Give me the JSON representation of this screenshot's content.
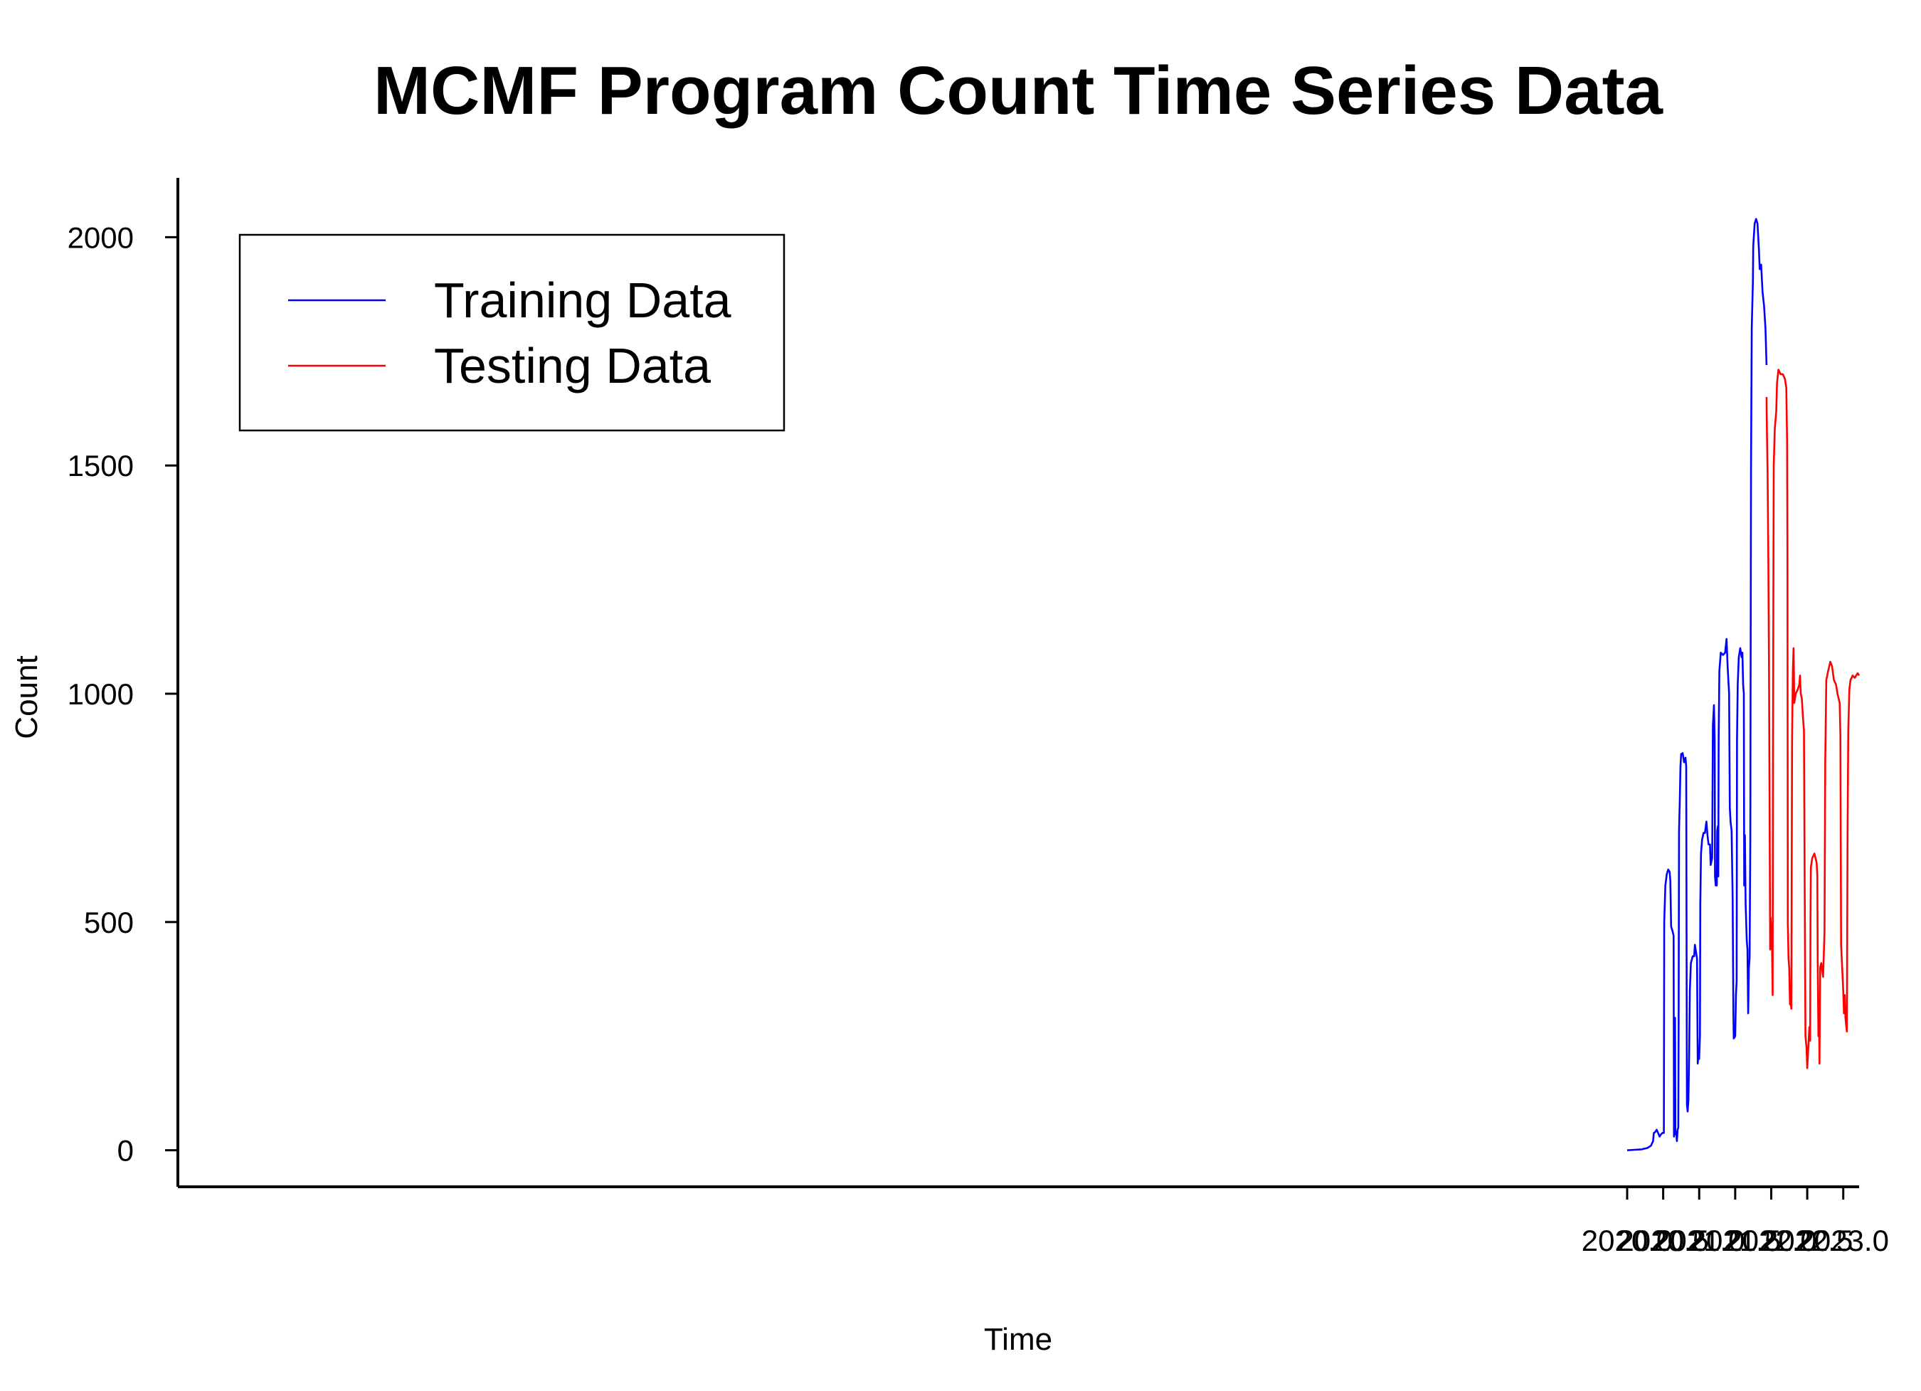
{
  "chart_data": {
    "type": "line",
    "title": "MCMF Program Count Time Series Data",
    "xlabel": "Time",
    "ylabel": "Count",
    "xlim": [
      1999.88,
      2023.22
    ],
    "ylim": [
      -80,
      2130
    ],
    "x_ticks": [
      {
        "value": 2020.0,
        "label": "2020.0"
      },
      {
        "value": 2020.5,
        "label": "2020.5"
      },
      {
        "value": 2021.0,
        "label": "2021.0"
      },
      {
        "value": 2021.5,
        "label": "2021.5"
      },
      {
        "value": 2022.0,
        "label": "2022.0"
      },
      {
        "value": 2022.5,
        "label": "2022.5"
      },
      {
        "value": 2023.0,
        "label": "2023.0"
      }
    ],
    "y_ticks": [
      {
        "value": 0,
        "label": "0"
      },
      {
        "value": 500,
        "label": "500"
      },
      {
        "value": 1000,
        "label": "1000"
      },
      {
        "value": 1500,
        "label": "1500"
      },
      {
        "value": 2000,
        "label": "2000"
      }
    ],
    "grid": false,
    "legend_position": "top-left",
    "series": [
      {
        "name": "Training Data",
        "color": "#0000ff",
        "points": [
          [
            2020.0,
            0
          ],
          [
            2020.1,
            1
          ],
          [
            2020.2,
            2
          ],
          [
            2020.28,
            5
          ],
          [
            2020.33,
            10
          ],
          [
            2020.36,
            20
          ],
          [
            2020.37,
            38
          ],
          [
            2020.39,
            40
          ],
          [
            2020.41,
            45
          ],
          [
            2020.43,
            38
          ],
          [
            2020.45,
            30
          ],
          [
            2020.47,
            35
          ],
          [
            2020.49,
            38
          ],
          [
            2020.51,
            38
          ],
          [
            2020.515,
            500
          ],
          [
            2020.53,
            580
          ],
          [
            2020.55,
            605
          ],
          [
            2020.57,
            615
          ],
          [
            2020.59,
            610
          ],
          [
            2020.6,
            590
          ],
          [
            2020.61,
            490
          ],
          [
            2020.63,
            480
          ],
          [
            2020.645,
            470
          ],
          [
            2020.65,
            30
          ],
          [
            2020.655,
            290
          ],
          [
            2020.665,
            290
          ],
          [
            2020.67,
            35
          ],
          [
            2020.68,
            40
          ],
          [
            2020.69,
            20
          ],
          [
            2020.7,
            45
          ],
          [
            2020.71,
            50
          ],
          [
            2020.715,
            300
          ],
          [
            2020.72,
            700
          ],
          [
            2020.73,
            760
          ],
          [
            2020.74,
            840
          ],
          [
            2020.75,
            868
          ],
          [
            2020.77,
            870
          ],
          [
            2020.79,
            850
          ],
          [
            2020.81,
            860
          ],
          [
            2020.82,
            840
          ],
          [
            2020.83,
            100
          ],
          [
            2020.84,
            85
          ],
          [
            2020.85,
            110
          ],
          [
            2020.86,
            210
          ],
          [
            2020.87,
            350
          ],
          [
            2020.885,
            410
          ],
          [
            2020.91,
            425
          ],
          [
            2020.93,
            425
          ],
          [
            2020.94,
            450
          ],
          [
            2020.96,
            430
          ],
          [
            2020.97,
            420
          ],
          [
            2020.975,
            300
          ],
          [
            2020.98,
            190
          ],
          [
            2020.99,
            215
          ],
          [
            2021.0,
            200
          ],
          [
            2021.01,
            250
          ],
          [
            2021.015,
            540
          ],
          [
            2021.025,
            650
          ],
          [
            2021.04,
            680
          ],
          [
            2021.06,
            695
          ],
          [
            2021.08,
            695
          ],
          [
            2021.1,
            720
          ],
          [
            2021.115,
            690
          ],
          [
            2021.13,
            670
          ],
          [
            2021.15,
            670
          ],
          [
            2021.16,
            625
          ],
          [
            2021.18,
            640
          ],
          [
            2021.19,
            930
          ],
          [
            2021.205,
            975
          ],
          [
            2021.215,
            900
          ],
          [
            2021.22,
            600
          ],
          [
            2021.23,
            580
          ],
          [
            2021.245,
            580
          ],
          [
            2021.25,
            700
          ],
          [
            2021.26,
            710
          ],
          [
            2021.265,
            600
          ],
          [
            2021.27,
            900
          ],
          [
            2021.28,
            1050
          ],
          [
            2021.3,
            1090
          ],
          [
            2021.33,
            1085
          ],
          [
            2021.36,
            1090
          ],
          [
            2021.38,
            1120
          ],
          [
            2021.395,
            1060
          ],
          [
            2021.415,
            1000
          ],
          [
            2021.425,
            750
          ],
          [
            2021.435,
            720
          ],
          [
            2021.45,
            700
          ],
          [
            2021.465,
            550
          ],
          [
            2021.475,
            300
          ],
          [
            2021.48,
            245
          ],
          [
            2021.5,
            250
          ],
          [
            2021.51,
            340
          ],
          [
            2021.52,
            370
          ],
          [
            2021.525,
            900
          ],
          [
            2021.535,
            1020
          ],
          [
            2021.55,
            1080
          ],
          [
            2021.57,
            1100
          ],
          [
            2021.59,
            1080
          ],
          [
            2021.6,
            1090
          ],
          [
            2021.61,
            1020
          ],
          [
            2021.62,
            1000
          ],
          [
            2021.625,
            580
          ],
          [
            2021.635,
            690
          ],
          [
            2021.645,
            540
          ],
          [
            2021.66,
            460
          ],
          [
            2021.67,
            440
          ],
          [
            2021.68,
            300
          ],
          [
            2021.69,
            400
          ],
          [
            2021.7,
            420
          ],
          [
            2021.71,
            680
          ],
          [
            2021.72,
            1500
          ],
          [
            2021.73,
            1800
          ],
          [
            2021.745,
            1900
          ],
          [
            2021.75,
            1980
          ],
          [
            2021.77,
            2030
          ],
          [
            2021.79,
            2040
          ],
          [
            2021.81,
            2030
          ],
          [
            2021.83,
            1970
          ],
          [
            2021.84,
            1930
          ],
          [
            2021.86,
            1940
          ],
          [
            2021.88,
            1880
          ],
          [
            2021.9,
            1850
          ],
          [
            2021.92,
            1800
          ],
          [
            2021.935,
            1720
          ]
        ]
      },
      {
        "name": "Testing Data",
        "color": "#ff0000",
        "points": [
          [
            2021.935,
            1650
          ],
          [
            2021.94,
            1580
          ],
          [
            2021.95,
            1480
          ],
          [
            2021.96,
            1300
          ],
          [
            2021.97,
            1050
          ],
          [
            2021.985,
            440
          ],
          [
            2021.99,
            510
          ],
          [
            2022.0,
            480
          ],
          [
            2022.01,
            460
          ],
          [
            2022.02,
            340
          ],
          [
            2022.025,
            900
          ],
          [
            2022.035,
            1500
          ],
          [
            2022.05,
            1580
          ],
          [
            2022.07,
            1620
          ],
          [
            2022.08,
            1680
          ],
          [
            2022.1,
            1710
          ],
          [
            2022.13,
            1700
          ],
          [
            2022.16,
            1700
          ],
          [
            2022.19,
            1690
          ],
          [
            2022.21,
            1670
          ],
          [
            2022.22,
            1550
          ],
          [
            2022.225,
            1300
          ],
          [
            2022.23,
            500
          ],
          [
            2022.24,
            420
          ],
          [
            2022.25,
            400
          ],
          [
            2022.26,
            320
          ],
          [
            2022.27,
            320
          ],
          [
            2022.28,
            310
          ],
          [
            2022.29,
            900
          ],
          [
            2022.3,
            1050
          ],
          [
            2022.31,
            1100
          ],
          [
            2022.32,
            980
          ],
          [
            2022.34,
            1000
          ],
          [
            2022.37,
            1010
          ],
          [
            2022.39,
            1020
          ],
          [
            2022.4,
            1040
          ],
          [
            2022.41,
            1000
          ],
          [
            2022.425,
            990
          ],
          [
            2022.44,
            950
          ],
          [
            2022.455,
            920
          ],
          [
            2022.465,
            560
          ],
          [
            2022.475,
            250
          ],
          [
            2022.49,
            225
          ],
          [
            2022.5,
            180
          ],
          [
            2022.52,
            240
          ],
          [
            2022.53,
            270
          ],
          [
            2022.54,
            240
          ],
          [
            2022.545,
            500
          ],
          [
            2022.55,
            620
          ],
          [
            2022.57,
            640
          ],
          [
            2022.6,
            650
          ],
          [
            2022.63,
            630
          ],
          [
            2022.64,
            600
          ],
          [
            2022.645,
            420
          ],
          [
            2022.655,
            250
          ],
          [
            2022.665,
            280
          ],
          [
            2022.67,
            190
          ],
          [
            2022.68,
            400
          ],
          [
            2022.695,
            410
          ],
          [
            2022.72,
            380
          ],
          [
            2022.74,
            480
          ],
          [
            2022.75,
            850
          ],
          [
            2022.765,
            1030
          ],
          [
            2022.79,
            1050
          ],
          [
            2022.82,
            1070
          ],
          [
            2022.845,
            1060
          ],
          [
            2022.87,
            1030
          ],
          [
            2022.9,
            1020
          ],
          [
            2022.92,
            1000
          ],
          [
            2022.95,
            980
          ],
          [
            2022.96,
            910
          ],
          [
            2022.97,
            450
          ],
          [
            2022.985,
            400
          ],
          [
            2023.0,
            350
          ],
          [
            2023.01,
            300
          ],
          [
            2023.02,
            340
          ],
          [
            2023.03,
            290
          ],
          [
            2023.04,
            275
          ],
          [
            2023.05,
            260
          ],
          [
            2023.06,
            700
          ],
          [
            2023.07,
            920
          ],
          [
            2023.085,
            1010
          ],
          [
            2023.1,
            1030
          ],
          [
            2023.13,
            1040
          ],
          [
            2023.16,
            1035
          ],
          [
            2023.2,
            1045
          ],
          [
            2023.22,
            1040
          ]
        ]
      }
    ]
  }
}
